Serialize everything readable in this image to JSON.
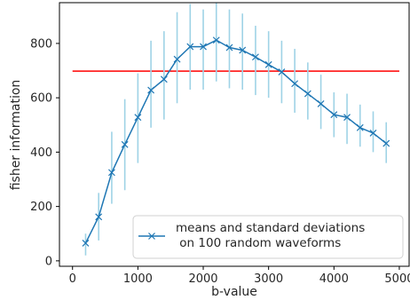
{
  "chart_data": {
    "type": "line",
    "xlabel": "b-value",
    "ylabel": "fisher information",
    "xlim": [
      -200,
      5150
    ],
    "ylim": [
      -20,
      950
    ],
    "xticks": [
      0,
      1000,
      2000,
      3000,
      4000,
      5000
    ],
    "yticks": [
      0,
      200,
      400,
      600,
      800
    ],
    "grid": false,
    "legend_position": "bottom-right",
    "colors": {
      "series": "#1f77b4",
      "errorbars": "#9fd3e6",
      "reference_line": "#ff0000",
      "axes": "#000000"
    },
    "series": [
      {
        "name": "means and standard deviations\n on 100 random waveforms",
        "marker": "x",
        "x": [
          200,
          400,
          600,
          800,
          1000,
          1200,
          1400,
          1600,
          1800,
          2000,
          2200,
          2400,
          2600,
          2800,
          3000,
          3200,
          3400,
          3600,
          3800,
          4000,
          4200,
          4400,
          4600,
          4800
        ],
        "y": [
          65,
          162,
          325,
          428,
          528,
          628,
          668,
          742,
          788,
          788,
          812,
          785,
          775,
          750,
          722,
          695,
          652,
          615,
          578,
          538,
          528,
          490,
          470,
          432
        ],
        "yerr_low": [
          20,
          75,
          210,
          260,
          360,
          490,
          520,
          580,
          630,
          630,
          660,
          635,
          630,
          610,
          600,
          580,
          545,
          520,
          485,
          455,
          430,
          420,
          400,
          360
        ],
        "yerr_high": [
          100,
          250,
          475,
          595,
          690,
          810,
          845,
          915,
          945,
          925,
          950,
          925,
          910,
          865,
          845,
          810,
          780,
          730,
          685,
          620,
          615,
          575,
          550,
          510
        ]
      }
    ],
    "reference_line": {
      "y": 698,
      "x_range": [
        0,
        5000
      ]
    }
  }
}
